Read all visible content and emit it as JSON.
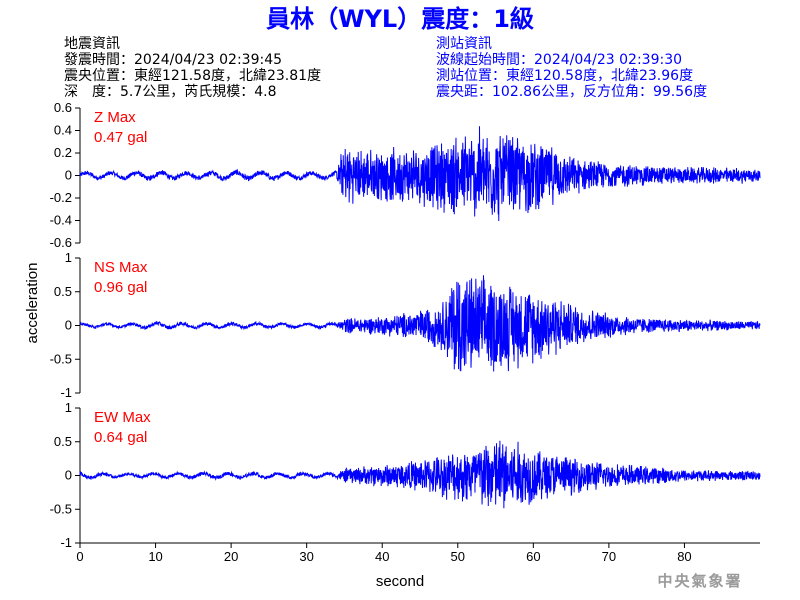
{
  "title": "員林（WYL）震度：1級",
  "quake_info": {
    "heading": "地震資訊",
    "origin_time": "發震時間：2024/04/23 02:39:45",
    "epicenter": "震央位置：東經121.58度，北緯23.81度",
    "depth_magnitude": "深　度：5.7公里，芮氏規模：4.8"
  },
  "station_info": {
    "heading": "測站資訊",
    "wave_start": "波線起始時間：2024/04/23 02:39:30",
    "location": "測站位置：東經120.58度，北緯23.96度",
    "distance": "震央距：102.86公里，反方位角：99.56度"
  },
  "credit": "中央氣象署",
  "colors": {
    "title": "#0000ff",
    "trace": "#0000ff",
    "max_label": "#ff0000",
    "text": "#000000"
  },
  "chart_data": {
    "type": "line",
    "xlabel": "second",
    "ylabel": "acceleration",
    "xlim": [
      0,
      90
    ],
    "xticks": [
      "0",
      "10",
      "20",
      "30",
      "40",
      "50",
      "60",
      "70",
      "80"
    ],
    "grid": false,
    "panels": [
      {
        "name": "Z",
        "max_label": "Z Max",
        "max_value": "0.47 gal",
        "ylim": [
          -0.6,
          0.6
        ],
        "yticks": [
          "0.6",
          "0.4",
          "0.2",
          "0",
          "-0.2",
          "-0.4",
          "-0.6"
        ],
        "x": [
          0,
          5,
          10,
          15,
          20,
          25,
          30,
          34,
          35,
          36,
          40,
          45,
          48,
          50,
          52,
          53,
          55,
          57,
          60,
          62,
          65,
          70,
          75,
          80,
          85,
          90
        ],
        "y_envelope": [
          0.04,
          0.04,
          0.05,
          0.04,
          0.05,
          0.05,
          0.04,
          0.04,
          0.35,
          0.26,
          0.25,
          0.28,
          0.34,
          0.4,
          0.42,
          0.47,
          0.44,
          0.4,
          0.35,
          0.3,
          0.18,
          0.12,
          0.1,
          0.08,
          0.08,
          0.07
        ]
      },
      {
        "name": "NS",
        "max_label": "NS Max",
        "max_value": "0.96 gal",
        "ylim": [
          -1,
          1
        ],
        "yticks": [
          "1",
          "0.5",
          "0",
          "-0.5",
          "-1"
        ],
        "x": [
          0,
          5,
          10,
          15,
          20,
          25,
          30,
          34,
          35,
          40,
          45,
          48,
          50,
          51,
          53,
          55,
          57,
          60,
          62,
          65,
          70,
          75,
          80,
          85,
          90
        ],
        "y_envelope": [
          0.04,
          0.04,
          0.06,
          0.05,
          0.05,
          0.05,
          0.04,
          0.05,
          0.12,
          0.15,
          0.25,
          0.4,
          0.96,
          0.85,
          0.8,
          0.75,
          0.7,
          0.6,
          0.55,
          0.35,
          0.2,
          0.12,
          0.1,
          0.08,
          0.07
        ]
      },
      {
        "name": "EW",
        "max_label": "EW Max",
        "max_value": "0.64 gal",
        "ylim": [
          -1,
          1
        ],
        "yticks": [
          "1",
          "0.5",
          "0",
          "-0.5",
          "-1"
        ],
        "x": [
          0,
          5,
          10,
          15,
          20,
          25,
          30,
          34,
          35,
          40,
          45,
          48,
          50,
          52,
          54,
          56,
          58,
          60,
          65,
          70,
          75,
          80,
          85,
          90
        ],
        "y_envelope": [
          0.06,
          0.04,
          0.05,
          0.05,
          0.06,
          0.05,
          0.05,
          0.05,
          0.12,
          0.18,
          0.25,
          0.35,
          0.42,
          0.5,
          0.6,
          0.64,
          0.55,
          0.45,
          0.3,
          0.2,
          0.15,
          0.1,
          0.08,
          0.08
        ]
      }
    ]
  }
}
